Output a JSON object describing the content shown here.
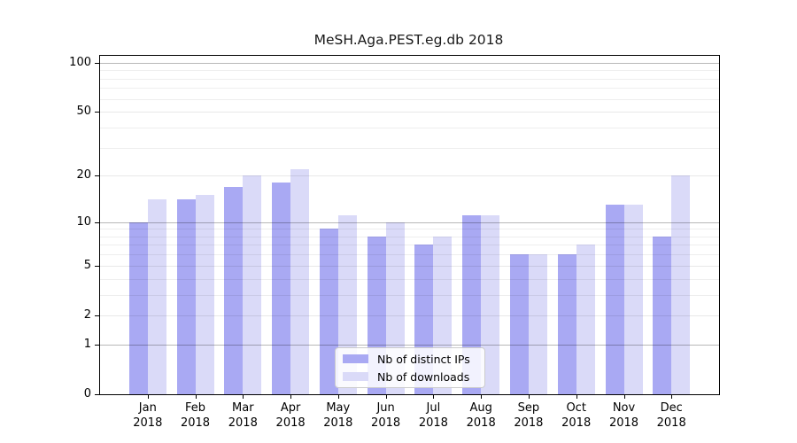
{
  "chart_data": {
    "type": "bar",
    "title": "MeSH.Aga.PEST.eg.db 2018",
    "categories": [
      "Jan",
      "Feb",
      "Mar",
      "Apr",
      "May",
      "Jun",
      "Jul",
      "Aug",
      "Sep",
      "Oct",
      "Nov",
      "Dec"
    ],
    "x_year_label": "2018",
    "series": [
      {
        "name": "Nb of distinct IPs",
        "color": "#a9a9f3",
        "values": [
          10,
          14,
          17,
          18,
          9,
          8,
          7,
          11,
          6,
          6,
          13,
          8
        ]
      },
      {
        "name": "Nb of downloads",
        "color": "#dadaf8",
        "values": [
          14,
          15,
          20,
          22,
          11,
          10,
          8,
          11,
          6,
          7,
          13,
          20
        ]
      }
    ],
    "y_axis": {
      "scale": "log1p",
      "tick_labels": [
        "0",
        "1",
        "2",
        "5",
        "10",
        "20",
        "50",
        "100"
      ],
      "tick_values": [
        0,
        1,
        2,
        5,
        10,
        20,
        50,
        100
      ],
      "minor_gridline_values": [
        3,
        4,
        6,
        7,
        8,
        9,
        30,
        40,
        60,
        70,
        80,
        90
      ],
      "ylim": [
        0,
        110
      ]
    },
    "legend_position": "bottom-center",
    "grid": true,
    "colors": {
      "decade_gridline": "#b8b8b8",
      "minor_gridline": "#ededed",
      "axis": "#000000",
      "background": "#ffffff"
    }
  }
}
